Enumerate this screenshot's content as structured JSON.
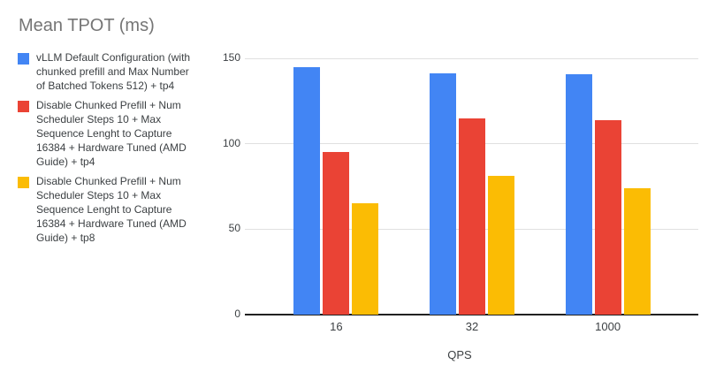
{
  "chart_data": {
    "type": "bar",
    "title": "Mean TPOT (ms)",
    "xlabel": "QPS",
    "ylabel": "",
    "categories": [
      "16",
      "32",
      "1000"
    ],
    "series": [
      {
        "name": "vLLM Default Configuration (with chunked prefill and Max Number of Batched Tokens 512) + tp4",
        "color": "#4285F4",
        "values": [
          145,
          141,
          140.5
        ]
      },
      {
        "name": "Disable Chunked Prefill + Num Scheduler Steps 10 + Max Sequence Lenght to Capture 16384 + Hardware Tuned (AMD Guide) + tp4",
        "color": "#EA4335",
        "values": [
          95,
          115,
          114
        ]
      },
      {
        "name": "Disable Chunked Prefill + Num Scheduler Steps 10 + Max Sequence Lenght to Capture 16384 + Hardware Tuned (AMD Guide) + tp8",
        "color": "#FBBC04",
        "values": [
          65,
          81,
          74
        ]
      }
    ],
    "y_ticks": [
      0,
      50,
      100,
      150
    ],
    "ylim": [
      0,
      150
    ],
    "grid": true,
    "legend_position": "left",
    "colors": {
      "title_text": "#757575",
      "axis_text": "#3c4043",
      "gridline": "#e0e0e0",
      "axis_line": "#212121",
      "background": "#ffffff"
    }
  }
}
